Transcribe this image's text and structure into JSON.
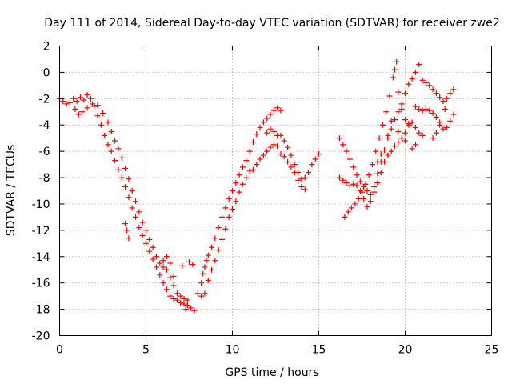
{
  "chart_data": {
    "type": "scatter",
    "title": "Day 111 of 2014, Sidereal Day-to-day VTEC variation (SDTVAR) for receiver zwe2",
    "xlabel": "GPS time / hours",
    "ylabel": "SDTVAR / TECUs",
    "xlim": [
      0,
      25
    ],
    "ylim": [
      -20,
      2
    ],
    "xticks": [
      0,
      5,
      10,
      15,
      20,
      25
    ],
    "yticks": [
      -20,
      -18,
      -16,
      -14,
      -12,
      -10,
      -8,
      -6,
      -4,
      -2,
      0,
      2
    ],
    "grid": true,
    "marker": "+",
    "color": "#ff0000",
    "series": [
      {
        "points": [
          [
            0.0,
            -2.0
          ],
          [
            0.2,
            -2.2
          ],
          [
            0.4,
            -2.4
          ],
          [
            0.6,
            -2.3
          ],
          [
            0.8,
            -2.0
          ],
          [
            1.0,
            -2.2
          ],
          [
            1.2,
            -1.9
          ],
          [
            1.4,
            -2.1
          ],
          [
            1.6,
            -1.7
          ],
          [
            1.8,
            -2.0
          ],
          [
            2.0,
            -2.6
          ],
          [
            2.2,
            -3.3
          ],
          [
            2.4,
            -4.0
          ],
          [
            2.6,
            -4.8
          ],
          [
            2.8,
            -5.5
          ],
          [
            3.0,
            -6.0
          ],
          [
            3.2,
            -6.7
          ],
          [
            3.4,
            -7.4
          ],
          [
            3.6,
            -8.0
          ],
          [
            3.8,
            -8.7
          ],
          [
            4.0,
            -9.5
          ],
          [
            4.2,
            -10.3
          ],
          [
            4.4,
            -11.0
          ],
          [
            4.6,
            -11.8
          ],
          [
            4.8,
            -12.4
          ],
          [
            5.0,
            -13.0
          ],
          [
            5.2,
            -13.6
          ],
          [
            5.4,
            -14.2
          ],
          [
            5.6,
            -14.8
          ],
          [
            5.8,
            -15.4
          ],
          [
            6.0,
            -16.0
          ],
          [
            6.2,
            -16.5
          ],
          [
            6.4,
            -17.0
          ],
          [
            6.6,
            -17.2
          ],
          [
            6.8,
            -17.3
          ],
          [
            7.0,
            -17.5
          ],
          [
            7.2,
            -17.6
          ],
          [
            7.4,
            -17.7
          ],
          [
            7.6,
            -17.9
          ],
          [
            7.8,
            -18.1
          ]
        ]
      },
      {
        "points": [
          [
            0.9,
            -2.8
          ],
          [
            1.1,
            -3.2
          ],
          [
            1.3,
            -3.0
          ],
          [
            1.6,
            -2.7
          ],
          [
            1.9,
            -2.4
          ],
          [
            2.2,
            -2.5
          ],
          [
            2.5,
            -3.1
          ],
          [
            2.8,
            -3.8
          ],
          [
            3.0,
            -4.5
          ],
          [
            3.2,
            -5.2
          ],
          [
            3.4,
            -5.8
          ],
          [
            3.6,
            -6.5
          ],
          [
            3.8,
            -7.3
          ],
          [
            4.0,
            -8.1
          ],
          [
            4.2,
            -9.0
          ],
          [
            4.4,
            -9.8
          ],
          [
            4.6,
            -10.6
          ],
          [
            4.8,
            -11.4
          ],
          [
            5.0,
            -12.0
          ],
          [
            5.2,
            -12.7
          ],
          [
            5.4,
            -13.3
          ],
          [
            5.6,
            -14.0
          ],
          [
            5.8,
            -14.5
          ],
          [
            6.0,
            -14.8
          ],
          [
            6.2,
            -15.0
          ],
          [
            6.4,
            -15.6
          ],
          [
            6.6,
            -16.2
          ],
          [
            6.8,
            -16.8
          ],
          [
            7.0,
            -17.0
          ],
          [
            7.2,
            -17.2
          ],
          [
            7.4,
            -17.3
          ]
        ]
      },
      {
        "points": [
          [
            3.8,
            -11.5
          ],
          [
            3.9,
            -12.0
          ],
          [
            4.0,
            -12.6
          ],
          [
            6.0,
            -14.3
          ],
          [
            6.2,
            -14.0
          ],
          [
            6.4,
            -14.5
          ],
          [
            6.6,
            -15.5
          ],
          [
            7.1,
            -14.7
          ],
          [
            7.5,
            -14.4
          ],
          [
            7.7,
            -14.6
          ],
          [
            7.3,
            -18.0
          ]
        ]
      },
      {
        "points": [
          [
            8.2,
            -16.0
          ],
          [
            8.3,
            -15.3
          ],
          [
            8.4,
            -14.8
          ],
          [
            8.5,
            -14.3
          ],
          [
            8.6,
            -13.9
          ],
          [
            8.8,
            -13.3
          ],
          [
            9.0,
            -12.6
          ],
          [
            9.2,
            -11.8
          ],
          [
            9.4,
            -11.0
          ],
          [
            9.6,
            -10.3
          ],
          [
            9.8,
            -9.6
          ],
          [
            10.0,
            -9.0
          ],
          [
            10.2,
            -8.4
          ],
          [
            10.4,
            -7.8
          ],
          [
            10.6,
            -7.2
          ],
          [
            10.8,
            -6.7
          ],
          [
            11.0,
            -6.0
          ],
          [
            11.2,
            -5.3
          ],
          [
            11.4,
            -4.7
          ],
          [
            11.6,
            -4.2
          ],
          [
            11.8,
            -3.8
          ],
          [
            12.0,
            -3.5
          ],
          [
            12.2,
            -3.2
          ],
          [
            12.4,
            -2.9
          ],
          [
            12.6,
            -2.7
          ],
          [
            12.8,
            -2.9
          ]
        ]
      },
      {
        "points": [
          [
            8.0,
            -16.8
          ],
          [
            8.2,
            -17.0
          ],
          [
            8.4,
            -16.8
          ],
          [
            8.6,
            -15.8
          ],
          [
            8.8,
            -15.0
          ],
          [
            9.0,
            -14.3
          ],
          [
            9.2,
            -13.5
          ],
          [
            9.4,
            -12.7
          ],
          [
            9.6,
            -11.9
          ],
          [
            9.8,
            -11.0
          ],
          [
            10.0,
            -10.4
          ],
          [
            10.2,
            -9.8
          ],
          [
            10.4,
            -9.1
          ],
          [
            10.6,
            -8.5
          ],
          [
            10.8,
            -8.0
          ],
          [
            11.0,
            -7.5
          ],
          [
            11.2,
            -7.4
          ],
          [
            11.4,
            -7.0
          ],
          [
            11.6,
            -6.6
          ],
          [
            11.8,
            -6.3
          ],
          [
            12.0,
            -6.0
          ],
          [
            12.2,
            -5.7
          ],
          [
            12.4,
            -5.5
          ],
          [
            12.6,
            -5.6
          ],
          [
            12.8,
            -6.2
          ],
          [
            13.0,
            -6.4
          ],
          [
            13.2,
            -6.8
          ],
          [
            13.4,
            -7.2
          ],
          [
            13.6,
            -7.6
          ],
          [
            13.8,
            -8.2
          ],
          [
            14.0,
            -8.7
          ],
          [
            14.2,
            -8.9
          ]
        ]
      },
      {
        "points": [
          [
            12.0,
            -4.6
          ],
          [
            12.2,
            -4.3
          ],
          [
            12.4,
            -4.5
          ],
          [
            12.6,
            -4.8
          ],
          [
            12.8,
            -4.8
          ],
          [
            13.0,
            -5.2
          ],
          [
            13.2,
            -5.7
          ],
          [
            13.4,
            -6.3
          ],
          [
            13.6,
            -7.0
          ],
          [
            13.8,
            -7.6
          ],
          [
            14.0,
            -8.1
          ],
          [
            14.2,
            -8.0
          ],
          [
            14.4,
            -7.6
          ],
          [
            14.6,
            -7.0
          ],
          [
            14.8,
            -6.6
          ],
          [
            15.0,
            -6.2
          ]
        ]
      },
      {
        "points": [
          [
            16.2,
            -5.0
          ],
          [
            16.4,
            -5.5
          ],
          [
            16.6,
            -6.0
          ],
          [
            16.8,
            -6.6
          ],
          [
            17.0,
            -7.2
          ],
          [
            17.2,
            -7.8
          ],
          [
            17.4,
            -8.3
          ],
          [
            17.6,
            -8.7
          ],
          [
            17.8,
            -9.0
          ],
          [
            18.0,
            -9.3
          ],
          [
            18.2,
            -9.1
          ],
          [
            18.4,
            -8.4
          ],
          [
            18.6,
            -7.6
          ],
          [
            18.8,
            -6.8
          ],
          [
            19.0,
            -6.3
          ],
          [
            19.2,
            -6.0
          ],
          [
            19.4,
            -5.6
          ],
          [
            19.6,
            -5.3
          ],
          [
            19.8,
            -5.0
          ],
          [
            20.0,
            -4.6
          ],
          [
            20.2,
            -4.0
          ]
        ]
      },
      {
        "points": [
          [
            16.2,
            -8.0
          ],
          [
            16.4,
            -8.2
          ],
          [
            16.6,
            -8.4
          ],
          [
            16.8,
            -8.6
          ],
          [
            17.0,
            -8.5
          ],
          [
            17.2,
            -8.6
          ],
          [
            17.4,
            -9.0
          ],
          [
            17.6,
            -9.6
          ],
          [
            17.8,
            -10.2
          ],
          [
            18.0,
            -9.8
          ],
          [
            18.2,
            -8.7
          ],
          [
            18.4,
            -7.7
          ],
          [
            18.6,
            -6.8
          ],
          [
            18.8,
            -5.9
          ],
          [
            19.0,
            -5.0
          ],
          [
            19.2,
            -4.3
          ],
          [
            19.4,
            -3.6
          ],
          [
            19.6,
            -3.0
          ],
          [
            19.8,
            -2.4
          ],
          [
            20.0,
            -1.6
          ],
          [
            20.2,
            -0.9
          ],
          [
            20.4,
            -0.5
          ],
          [
            20.6,
            0.0
          ],
          [
            20.8,
            0.6
          ]
        ]
      },
      {
        "points": [
          [
            16.5,
            -11.0
          ],
          [
            16.7,
            -10.6
          ],
          [
            16.9,
            -10.3
          ],
          [
            17.1,
            -10.0
          ],
          [
            17.3,
            -9.6
          ],
          [
            17.5,
            -9.1
          ],
          [
            17.7,
            -8.5
          ],
          [
            17.9,
            -7.8
          ],
          [
            18.1,
            -7.0
          ],
          [
            18.3,
            -6.0
          ],
          [
            18.5,
            -5.0
          ],
          [
            18.7,
            -4.0
          ],
          [
            18.9,
            -3.0
          ],
          [
            19.1,
            -1.8
          ],
          [
            19.3,
            -0.4
          ],
          [
            19.5,
            0.8
          ],
          [
            19.4,
            0.2
          ],
          [
            19.6,
            -1.5
          ],
          [
            19.8,
            -2.8
          ],
          [
            20.0,
            -3.6
          ],
          [
            20.2,
            -3.9
          ],
          [
            20.4,
            -3.8
          ],
          [
            20.6,
            -4.2
          ],
          [
            20.8,
            -4.6
          ],
          [
            21.0,
            -4.8
          ]
        ]
      },
      {
        "points": [
          [
            21.0,
            -0.6
          ],
          [
            21.2,
            -0.8
          ],
          [
            21.4,
            -1.0
          ],
          [
            21.6,
            -1.3
          ],
          [
            21.8,
            -1.6
          ],
          [
            22.0,
            -1.9
          ],
          [
            22.2,
            -2.2
          ],
          [
            22.4,
            -2.0
          ],
          [
            22.6,
            -1.6
          ],
          [
            22.8,
            -1.3
          ]
        ]
      },
      {
        "points": [
          [
            20.6,
            -2.6
          ],
          [
            20.8,
            -2.8
          ],
          [
            21.0,
            -2.9
          ],
          [
            21.2,
            -2.8
          ],
          [
            21.4,
            -2.9
          ],
          [
            21.6,
            -3.1
          ],
          [
            21.8,
            -3.4
          ],
          [
            22.0,
            -3.8
          ],
          [
            22.2,
            -4.3
          ],
          [
            22.4,
            -4.2
          ],
          [
            22.6,
            -3.7
          ],
          [
            22.8,
            -3.2
          ],
          [
            22.0,
            -4.0
          ],
          [
            21.6,
            -5.0
          ],
          [
            21.8,
            -4.6
          ],
          [
            22.3,
            -2.8
          ]
        ]
      },
      {
        "points": [
          [
            19.2,
            -3.7
          ],
          [
            19.6,
            -4.5
          ],
          [
            20.0,
            -5.2
          ],
          [
            20.4,
            -5.8
          ],
          [
            20.6,
            -5.5
          ],
          [
            19.0,
            -4.8
          ],
          [
            18.6,
            -6.2
          ],
          [
            18.4,
            -6.8
          ]
        ]
      }
    ]
  }
}
